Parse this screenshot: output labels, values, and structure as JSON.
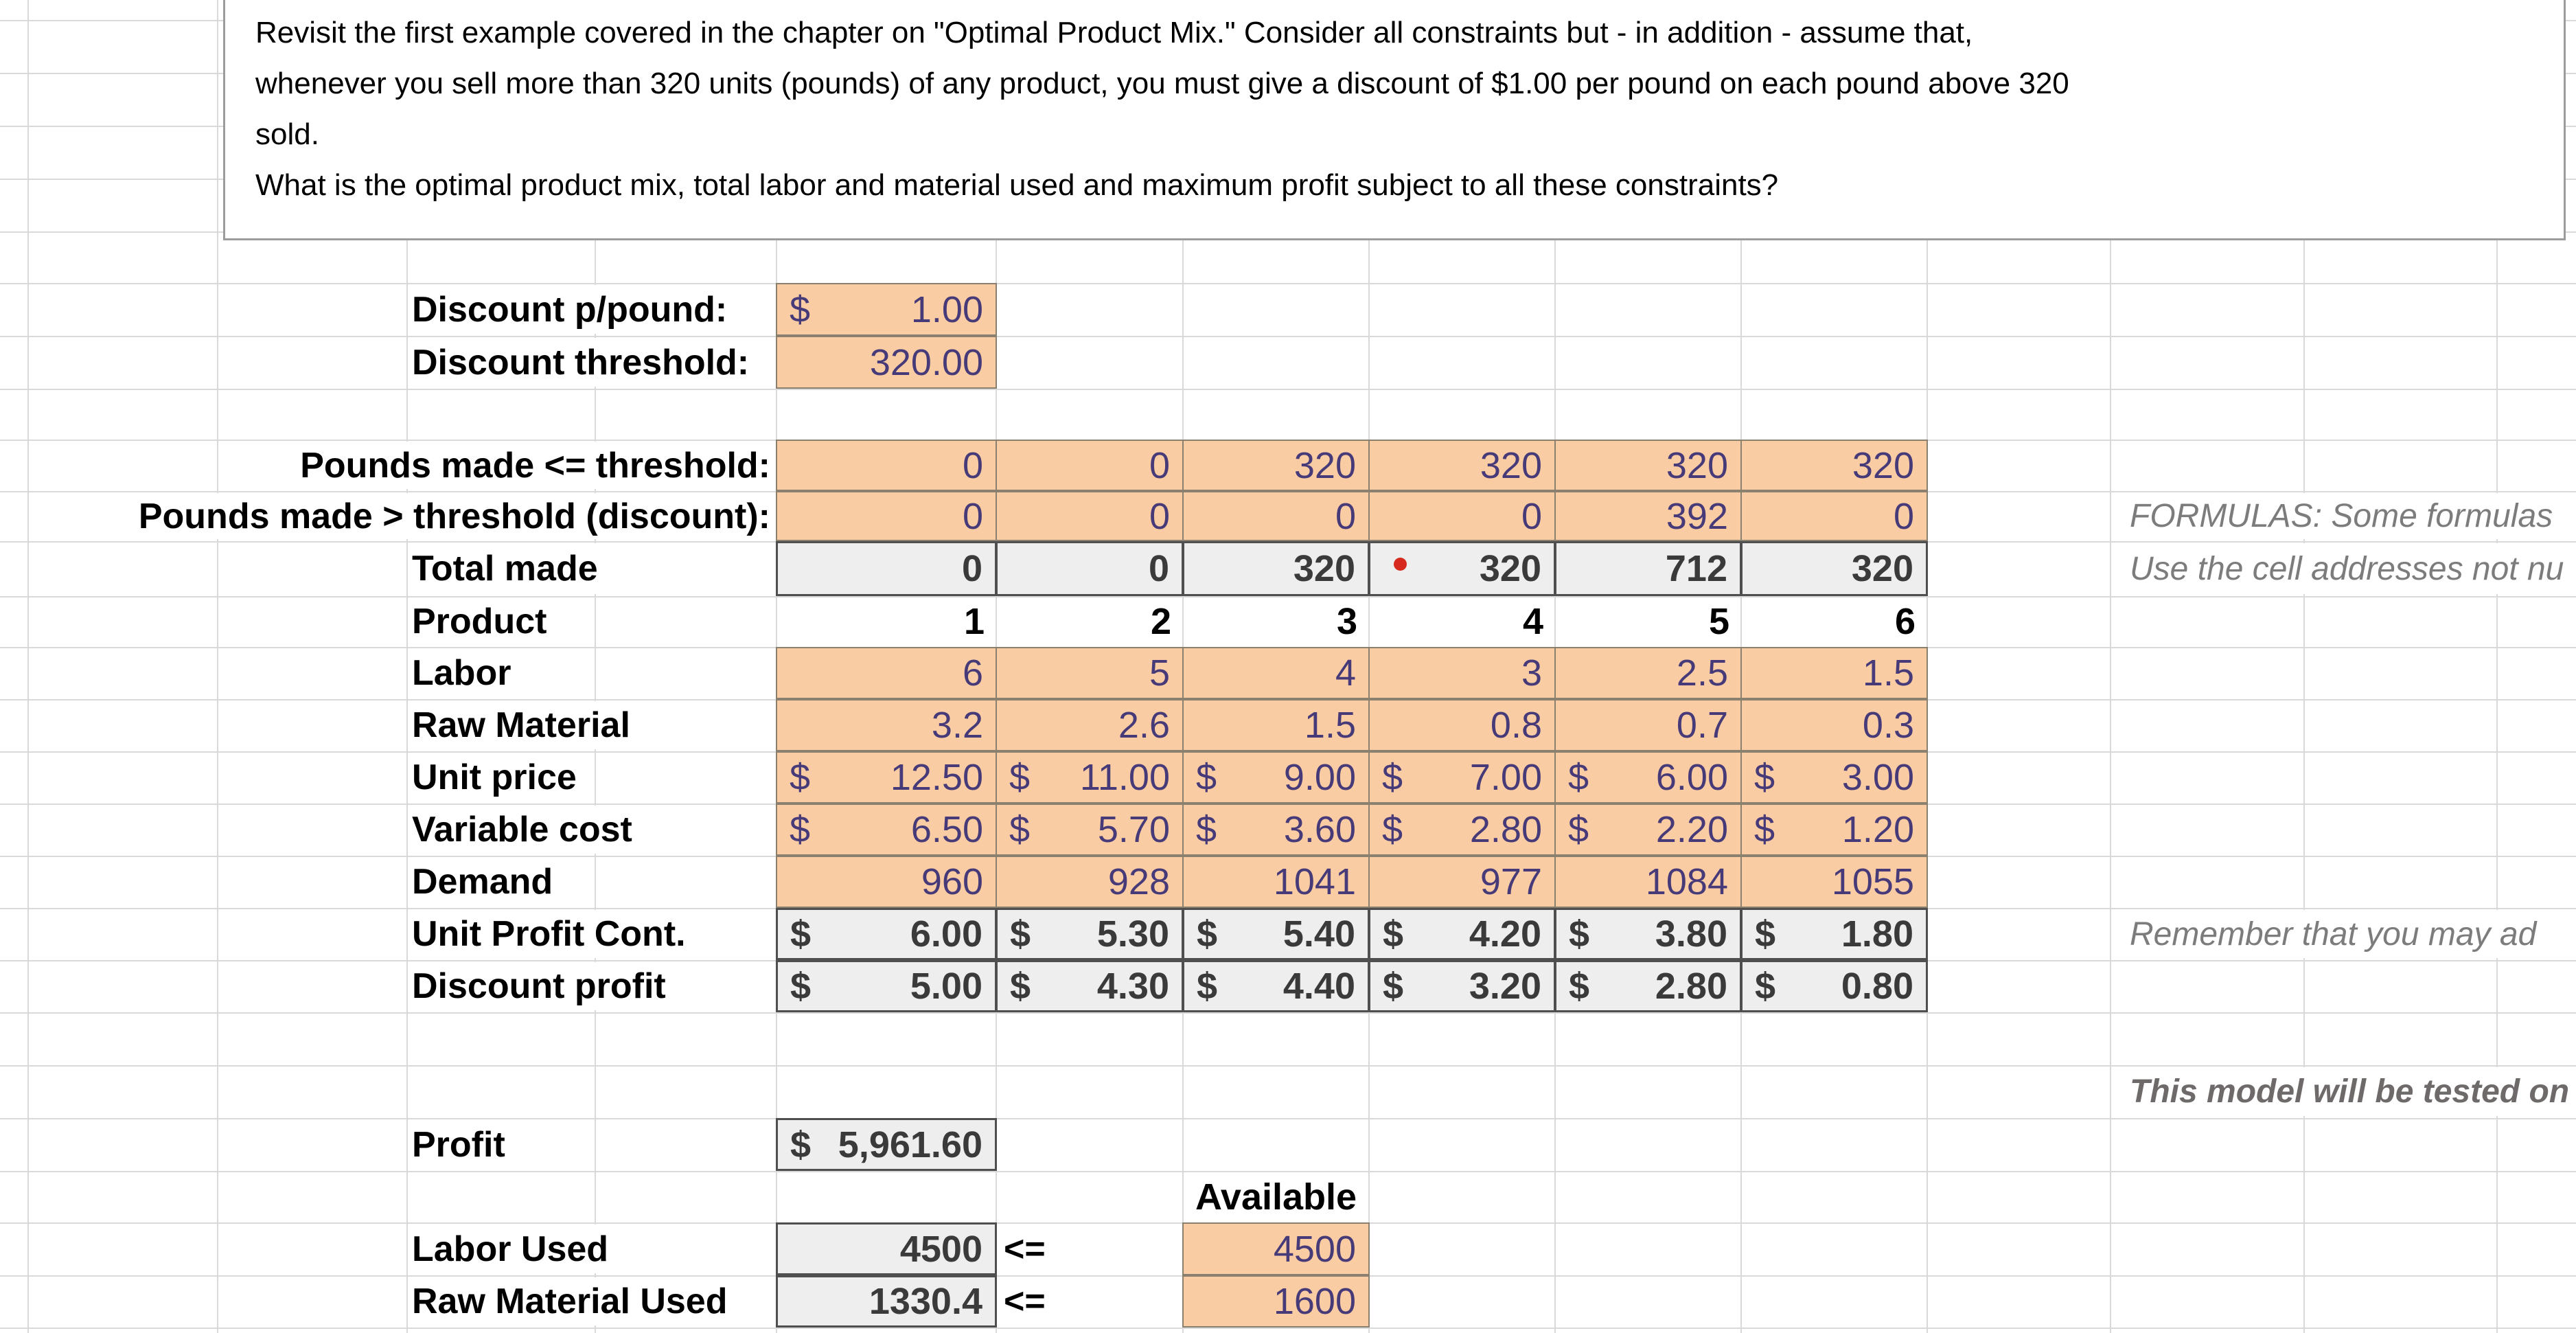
{
  "textbox": {
    "lines": [
      "Revisit the first example  covered in the chapter on \"Optimal Product Mix.\" Consider all constraints but - in addition - assume that,",
      "whenever you sell more than 320 units (pounds) of any product, you must give a discount of $1.00 per pound on each pound above 320",
      "sold.",
      "What is the optimal product mix, total labor and material used and maximum profit subject to all these constraints?"
    ]
  },
  "params": {
    "discount_per_pound": {
      "label": "Discount p/pound:",
      "currency": "$",
      "value": "1.00"
    },
    "discount_threshold": {
      "label": "Discount threshold:",
      "value": "320.00"
    }
  },
  "table": {
    "rows": {
      "pounds_le": {
        "label": "Pounds made <= threshold:",
        "values": [
          "0",
          "0",
          "320",
          "320",
          "320",
          "320"
        ]
      },
      "pounds_gt": {
        "label": "Pounds made > threshold (discount):",
        "values": [
          "0",
          "0",
          "0",
          "0",
          "392",
          "0"
        ]
      },
      "total_made": {
        "label": "Total made",
        "values": [
          "0",
          "0",
          "320",
          "320",
          "712",
          "320"
        ]
      },
      "product": {
        "label": "Product",
        "values": [
          "1",
          "2",
          "3",
          "4",
          "5",
          "6"
        ]
      },
      "labor": {
        "label": "Labor",
        "values": [
          "6",
          "5",
          "4",
          "3",
          "2.5",
          "1.5"
        ]
      },
      "raw_material": {
        "label": "Raw Material",
        "values": [
          "3.2",
          "2.6",
          "1.5",
          "0.8",
          "0.7",
          "0.3"
        ]
      },
      "unit_price": {
        "label": "Unit price",
        "currency": "$",
        "values": [
          "12.50",
          "11.00",
          "9.00",
          "7.00",
          "6.00",
          "3.00"
        ]
      },
      "variable_cost": {
        "label": "Variable cost",
        "currency": "$",
        "values": [
          "6.50",
          "5.70",
          "3.60",
          "2.80",
          "2.20",
          "1.20"
        ]
      },
      "demand": {
        "label": "Demand",
        "values": [
          "960",
          "928",
          "1041",
          "977",
          "1084",
          "1055"
        ]
      },
      "unit_profit": {
        "label": "Unit Profit Cont.",
        "currency": "$",
        "values": [
          "6.00",
          "5.30",
          "5.40",
          "4.20",
          "3.80",
          "1.80"
        ]
      },
      "discount_profit": {
        "label": "Discount profit",
        "currency": "$",
        "values": [
          "5.00",
          "4.30",
          "4.40",
          "3.20",
          "2.80",
          "0.80"
        ]
      }
    }
  },
  "summary": {
    "profit": {
      "label": "Profit",
      "currency": "$",
      "value": "5,961.60"
    },
    "available_header": "Available",
    "labor_used": {
      "label": "Labor Used",
      "value": "4500",
      "operator": "<=",
      "available": "4500"
    },
    "raw_material_used": {
      "label": "Raw Material Used",
      "value": "1330.4",
      "operator": "<=",
      "available": "1600"
    }
  },
  "annotations": {
    "formulas": "FORMULAS: Some formulas",
    "cell_addresses": "Use the cell addresses not nu",
    "remember": "Remember that you may ad",
    "model_note": "This model will be tested on"
  },
  "colors": {
    "input_fill": "#f9cca3",
    "input_text": "#473a78",
    "output_fill": "#efeeee",
    "output_text": "#3a3a3a",
    "gridline": "#d9d9d9",
    "comment_dot": "#d7291d"
  }
}
